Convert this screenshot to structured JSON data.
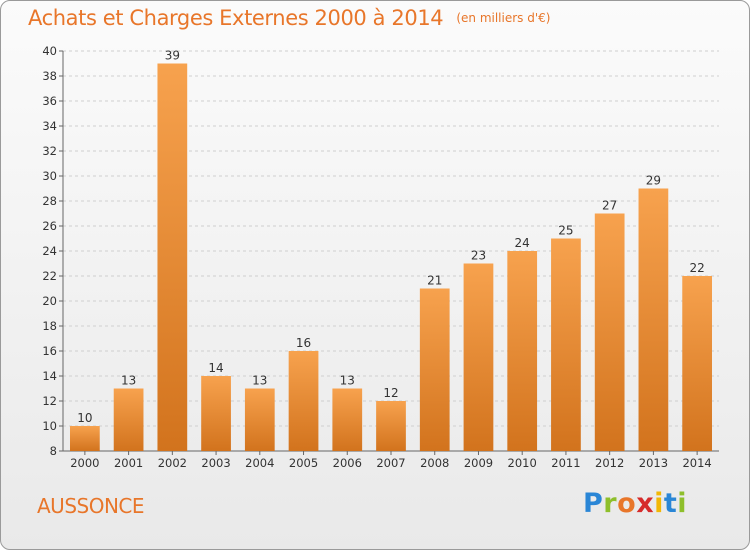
{
  "header": {
    "title": "Achats et Charges Externes 2000 à 2014",
    "unit": "(en milliers d'€)"
  },
  "footer": {
    "city": "AUSSONCE",
    "logo_letters": [
      "P",
      "r",
      "o",
      "x",
      "i",
      "t",
      "i"
    ]
  },
  "colors": {
    "title": "#e8762a",
    "bar_light": "#f7a24e",
    "bar_dark": "#d2731d",
    "background_top": "#fbfbfb",
    "background_bottom": "#e9e9e9"
  },
  "chart_data": {
    "type": "bar",
    "title": "Achats et Charges Externes 2000 à 2014",
    "subtitle": "(en milliers d'€)",
    "xlabel": "",
    "ylabel": "",
    "ylim": [
      8,
      40
    ],
    "y_ticks": [
      8,
      10,
      12,
      14,
      16,
      18,
      20,
      22,
      24,
      26,
      28,
      30,
      32,
      34,
      36,
      38,
      40
    ],
    "grid": "horizontal",
    "categories": [
      "2000",
      "2001",
      "2002",
      "2003",
      "2004",
      "2005",
      "2006",
      "2007",
      "2008",
      "2009",
      "2010",
      "2011",
      "2012",
      "2013",
      "2014"
    ],
    "values": [
      10,
      13,
      39,
      14,
      13,
      16,
      13,
      12,
      21,
      23,
      24,
      25,
      27,
      29,
      22
    ],
    "data_labels": [
      "10",
      "13",
      "39",
      "14",
      "13",
      "16",
      "13",
      "12",
      "21",
      "23",
      "24",
      "25",
      "27",
      "29",
      "22"
    ]
  }
}
